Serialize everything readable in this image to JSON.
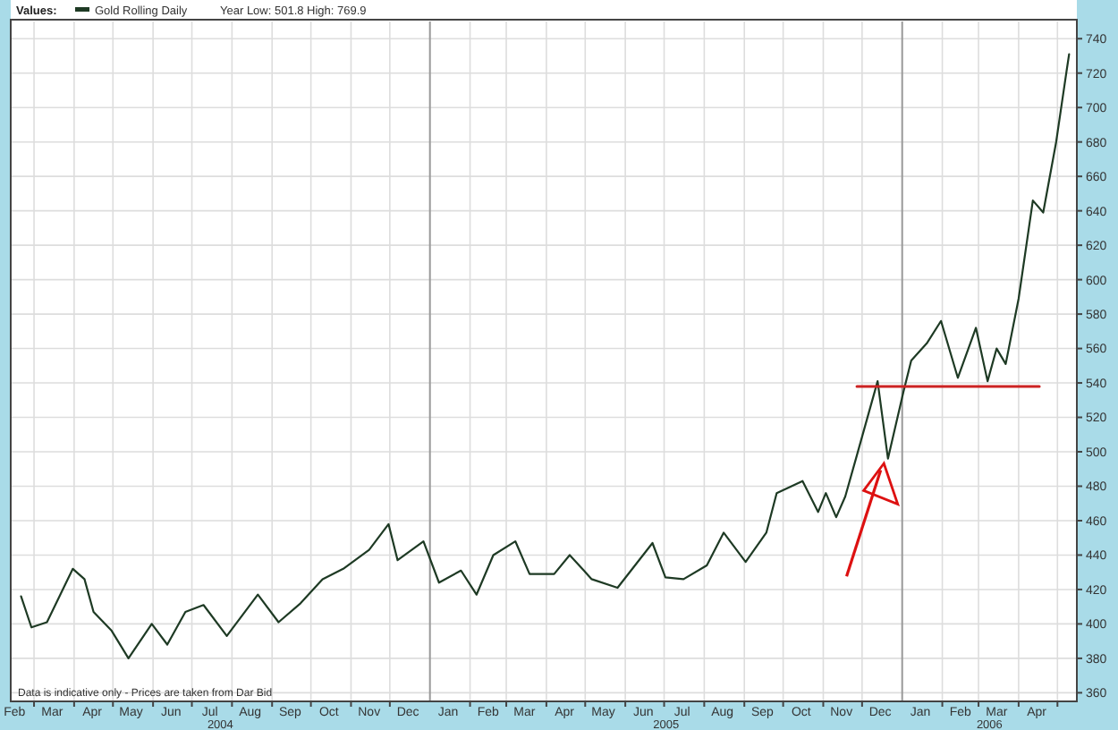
{
  "chart_data": {
    "type": "line",
    "legend_title": "Values:",
    "subtitle": "Year Low: 501.8 High: 769.9",
    "legend": "top left",
    "grid": true,
    "annotations": [
      "Data is indicative only - Prices are taken from Dar Bid",
      "2004",
      "2005",
      "2006"
    ],
    "ref_lines": [
      {
        "axis": "x",
        "value": "2005-01-01",
        "label": null,
        "color": "#999999"
      },
      {
        "axis": "x",
        "value": "2006-01-01",
        "label": null,
        "color": "#999999"
      }
    ],
    "xlim": [
      "2004-02-12",
      "2006-05-16"
    ],
    "xticks": [
      {
        "value": "2004-02-15",
        "label": "Feb"
      },
      {
        "value": "2004-03-01",
        "label": null
      },
      {
        "value": "2004-03-15",
        "label": "Mar"
      },
      {
        "value": "2004-04-01",
        "label": null
      },
      {
        "value": "2004-04-15",
        "label": "Apr"
      },
      {
        "value": "2004-05-01",
        "label": null
      },
      {
        "value": "2004-05-15",
        "label": "May"
      },
      {
        "value": "2004-06-01",
        "label": null
      },
      {
        "value": "2004-06-15",
        "label": "Jun"
      },
      {
        "value": "2004-07-01",
        "label": null
      },
      {
        "value": "2004-07-15",
        "label": "Jul"
      },
      {
        "value": "2004-08-01",
        "label": null
      },
      {
        "value": "2004-08-15",
        "label": "Aug"
      },
      {
        "value": "2004-09-01",
        "label": null
      },
      {
        "value": "2004-09-15",
        "label": "Sep"
      },
      {
        "value": "2004-10-01",
        "label": null
      },
      {
        "value": "2004-10-15",
        "label": "Oct"
      },
      {
        "value": "2004-11-01",
        "label": null
      },
      {
        "value": "2004-11-15",
        "label": "Nov"
      },
      {
        "value": "2004-12-01",
        "label": null
      },
      {
        "value": "2004-12-15",
        "label": "Dec"
      },
      {
        "value": "2005-01-15",
        "label": "Jan"
      },
      {
        "value": "2005-02-01",
        "label": null
      },
      {
        "value": "2005-02-15",
        "label": "Feb"
      },
      {
        "value": "2005-03-01",
        "label": null
      },
      {
        "value": "2005-03-15",
        "label": "Mar"
      },
      {
        "value": "2005-04-01",
        "label": null
      },
      {
        "value": "2005-04-15",
        "label": "Apr"
      },
      {
        "value": "2005-05-01",
        "label": null
      },
      {
        "value": "2005-05-15",
        "label": "May"
      },
      {
        "value": "2005-06-01",
        "label": null
      },
      {
        "value": "2005-06-15",
        "label": "Jun"
      },
      {
        "value": "2005-07-01",
        "label": null
      },
      {
        "value": "2005-07-15",
        "label": "Jul"
      },
      {
        "value": "2005-08-01",
        "label": null
      },
      {
        "value": "2005-08-15",
        "label": "Aug"
      },
      {
        "value": "2005-09-01",
        "label": null
      },
      {
        "value": "2005-09-15",
        "label": "Sep"
      },
      {
        "value": "2005-10-01",
        "label": null
      },
      {
        "value": "2005-10-15",
        "label": "Oct"
      },
      {
        "value": "2005-11-01",
        "label": null
      },
      {
        "value": "2005-11-15",
        "label": "Nov"
      },
      {
        "value": "2005-12-01",
        "label": null
      },
      {
        "value": "2005-12-15",
        "label": "Dec"
      },
      {
        "value": "2006-01-15",
        "label": "Jan"
      },
      {
        "value": "2006-02-01",
        "label": null
      },
      {
        "value": "2006-02-15",
        "label": "Feb"
      },
      {
        "value": "2006-03-01",
        "label": null
      },
      {
        "value": "2006-03-15",
        "label": "Mar"
      },
      {
        "value": "2006-04-01",
        "label": null
      },
      {
        "value": "2006-04-15",
        "label": "Apr"
      },
      {
        "value": "2006-05-01",
        "label": null
      }
    ],
    "ylim": [
      355,
      750
    ],
    "yticks": [
      360,
      380,
      400,
      420,
      440,
      460,
      480,
      500,
      520,
      540,
      560,
      580,
      600,
      620,
      640,
      660,
      680,
      700,
      720,
      740
    ],
    "series": [
      {
        "name": "Gold Rolling Daily",
        "color": "#1e3a24",
        "x": [
          "2004-02-20",
          "2004-02-28",
          "2004-03-11",
          "2004-03-31",
          "2004-04-09",
          "2004-04-16",
          "2004-04-30",
          "2004-05-13",
          "2004-05-31",
          "2004-06-12",
          "2004-06-26",
          "2004-07-10",
          "2004-07-28",
          "2004-08-21",
          "2004-09-06",
          "2004-09-23",
          "2004-10-10",
          "2004-10-26",
          "2004-11-15",
          "2004-11-30",
          "2004-12-07",
          "2004-12-27",
          "2005-01-08",
          "2005-01-25",
          "2005-02-06",
          "2005-02-19",
          "2005-03-08",
          "2005-03-19",
          "2005-04-07",
          "2005-04-19",
          "2005-04-30",
          "2005-05-06",
          "2005-05-26",
          "2005-06-22",
          "2005-07-02",
          "2005-07-16",
          "2005-08-03",
          "2005-08-16",
          "2005-09-02",
          "2005-09-18",
          "2005-09-26",
          "2005-10-16",
          "2005-10-28",
          "2005-11-03",
          "2005-11-11",
          "2005-11-18",
          "2005-11-27",
          "2005-12-13",
          "2005-12-21",
          "2006-01-02",
          "2006-01-08",
          "2006-01-20",
          "2006-01-31",
          "2006-02-13",
          "2006-02-27",
          "2006-03-08",
          "2006-03-15",
          "2006-03-22",
          "2006-04-01",
          "2006-04-12",
          "2006-04-20",
          "2006-04-30",
          "2006-05-08",
          "2006-05-10"
        ],
        "values": [
          416,
          398,
          401,
          432,
          426,
          407,
          396,
          380,
          400,
          388,
          407,
          411,
          393,
          417,
          401,
          412,
          426,
          432,
          443,
          458,
          437,
          448,
          424,
          431,
          417,
          440,
          448,
          429,
          429,
          440,
          431,
          426,
          421,
          447,
          427,
          426,
          434,
          453,
          436,
          453,
          476,
          483,
          465,
          476,
          462,
          474,
          498,
          541,
          496,
          535,
          553,
          563,
          576,
          543,
          572,
          541,
          560,
          551,
          589,
          646,
          639,
          680,
          721,
          731
        ]
      },
      {
        "type": "line",
        "color": "#cc2222",
        "x": [
          "2005-11-27",
          "2006-04-17"
        ],
        "values": [
          538,
          538
        ]
      }
    ]
  }
}
